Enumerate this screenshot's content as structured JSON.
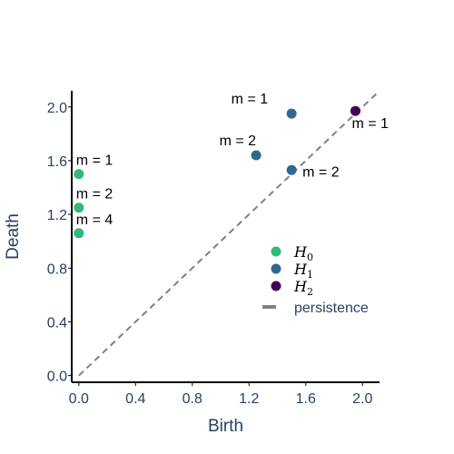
{
  "chart_data": {
    "type": "scatter",
    "title": "",
    "xlabel": "Birth",
    "ylabel": "Death",
    "xlim": [
      -0.05,
      2.12
    ],
    "ylim": [
      -0.05,
      2.12
    ],
    "x_ticks": [
      0.0,
      0.4,
      0.8,
      1.2,
      1.6,
      2.0
    ],
    "y_ticks": [
      0.0,
      0.4,
      0.8,
      1.2,
      1.6,
      2.0
    ],
    "x_tick_labels": [
      "0.0",
      "0.4",
      "0.8",
      "1.2",
      "1.6",
      "2.0"
    ],
    "y_tick_labels": [
      "0.0",
      "0.4",
      "0.8",
      "1.2",
      "1.6",
      "2.0"
    ],
    "grid": false,
    "legend_position": "center-right",
    "series": [
      {
        "name": "H0",
        "legend_base": "H",
        "legend_sub": "0",
        "color": "#35b778",
        "points": [
          {
            "x": 0.0,
            "y": 1.5,
            "label": "m = 1"
          },
          {
            "x": 0.0,
            "y": 1.25,
            "label": "m = 2"
          },
          {
            "x": 0.0,
            "y": 1.06,
            "label": "m = 4"
          }
        ]
      },
      {
        "name": "H1",
        "legend_base": "H",
        "legend_sub": "1",
        "color": "#31688e",
        "points": [
          {
            "x": 1.5,
            "y": 1.95,
            "label": "m = 1"
          },
          {
            "x": 1.25,
            "y": 1.64,
            "label": "m = 2"
          },
          {
            "x": 1.5,
            "y": 1.53,
            "label": "m = 2"
          }
        ]
      },
      {
        "name": "H2",
        "legend_base": "H",
        "legend_sub": "2",
        "color": "#440154",
        "points": [
          {
            "x": 1.95,
            "y": 1.97,
            "label": "m = 1"
          }
        ]
      }
    ],
    "diagonal": {
      "name": "persistence",
      "color": "#808080",
      "dash": "dashed",
      "from": [
        0.0,
        0.0
      ],
      "to": [
        2.12,
        2.12
      ]
    }
  }
}
